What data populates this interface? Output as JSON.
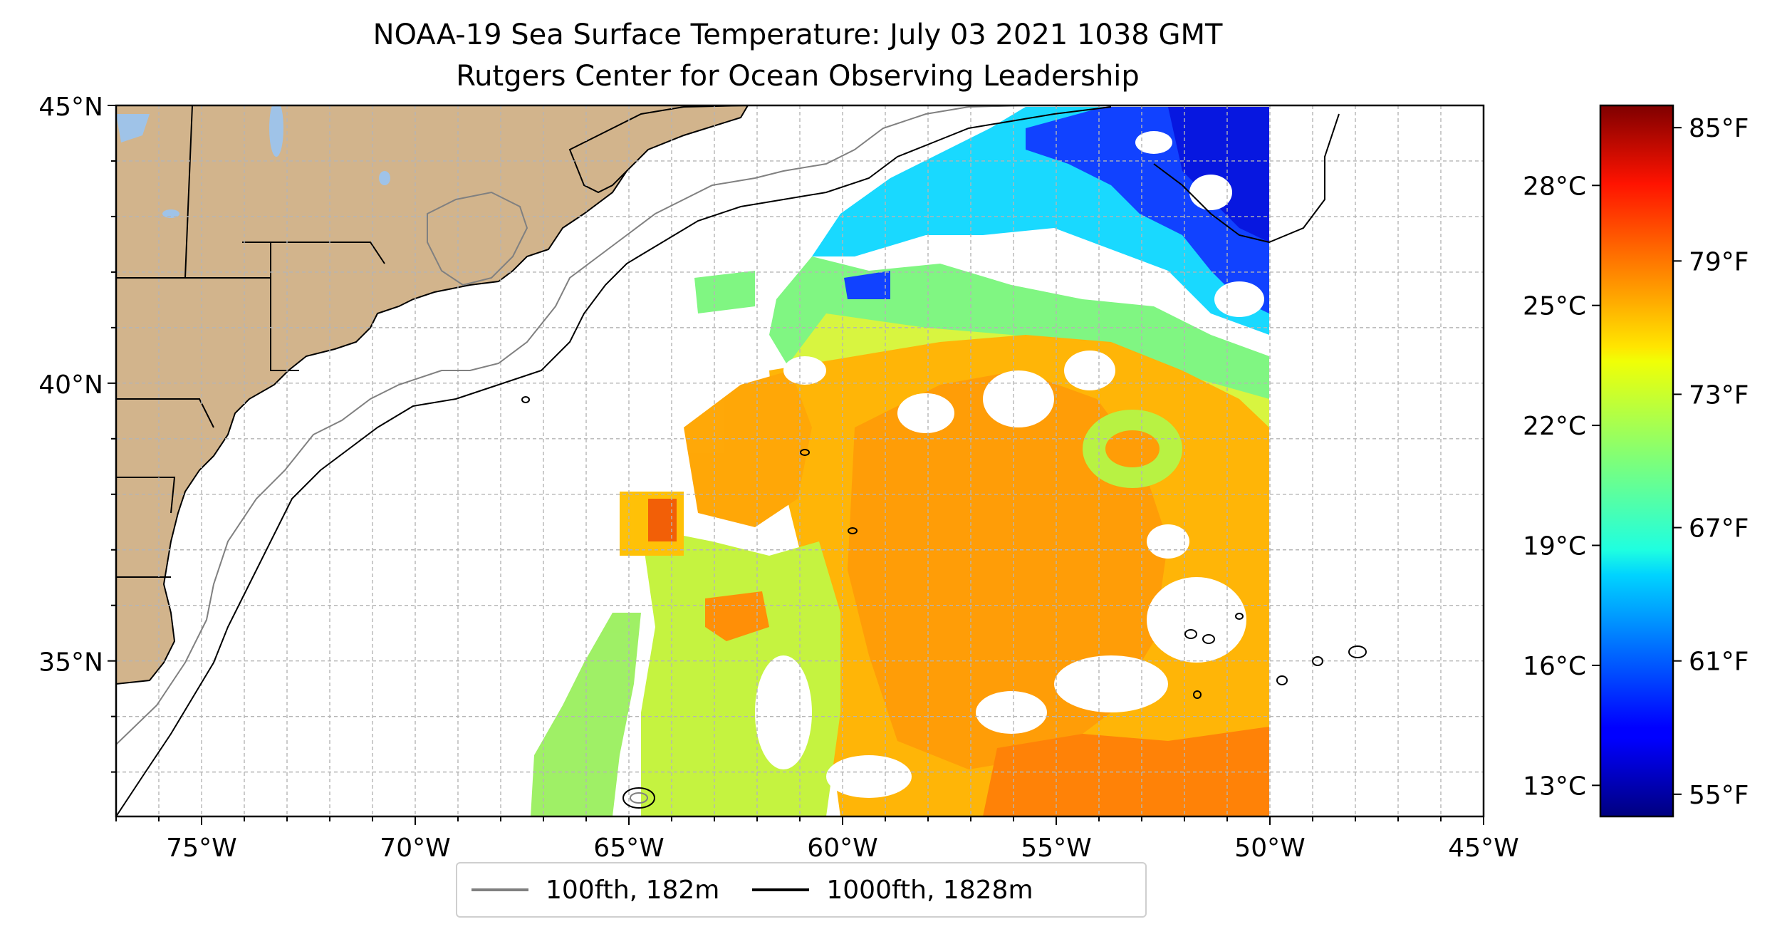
{
  "title": {
    "line1": "NOAA-19 Sea Surface Temperature: July 03 2021 1038 GMT",
    "line2": "Rutgers Center for Ocean Observing Leadership"
  },
  "map": {
    "lon_range": [
      -77,
      -45
    ],
    "lat_range": [
      32.2,
      45
    ],
    "lat_ticks": [
      {
        "value": 45,
        "label": "45°N"
      },
      {
        "value": 40,
        "label": "40°N"
      },
      {
        "value": 35,
        "label": "35°N"
      }
    ],
    "lon_ticks": [
      {
        "value": -75,
        "label": "75°W"
      },
      {
        "value": -70,
        "label": "70°W"
      },
      {
        "value": -65,
        "label": "65°W"
      },
      {
        "value": -60,
        "label": "60°W"
      },
      {
        "value": -55,
        "label": "55°W"
      },
      {
        "value": -50,
        "label": "50°W"
      },
      {
        "value": -45,
        "label": "45°W"
      }
    ],
    "gridlines": true,
    "land_color": "#d2b48c",
    "lake_color": "#9fc3e8"
  },
  "colorbar": {
    "colormap": "jet",
    "range_f": [
      54,
      86
    ],
    "celsius_ticks": [
      {
        "value_f": 82.4,
        "label": "28°C"
      },
      {
        "value_f": 77.0,
        "label": "25°C"
      },
      {
        "value_f": 71.6,
        "label": "22°C"
      },
      {
        "value_f": 66.2,
        "label": "19°C"
      },
      {
        "value_f": 60.8,
        "label": "16°C"
      },
      {
        "value_f": 55.4,
        "label": "13°C"
      }
    ],
    "fahrenheit_ticks": [
      {
        "value_f": 85,
        "label": "85°F"
      },
      {
        "value_f": 79,
        "label": "79°F"
      },
      {
        "value_f": 73,
        "label": "73°F"
      },
      {
        "value_f": 67,
        "label": "67°F"
      },
      {
        "value_f": 61,
        "label": "61°F"
      },
      {
        "value_f": 55,
        "label": "55°F"
      }
    ]
  },
  "legend": {
    "items": [
      {
        "label": "100fth, 182m",
        "color": "#808080"
      },
      {
        "label": "1000fth, 1828m",
        "color": "#000000"
      }
    ]
  }
}
